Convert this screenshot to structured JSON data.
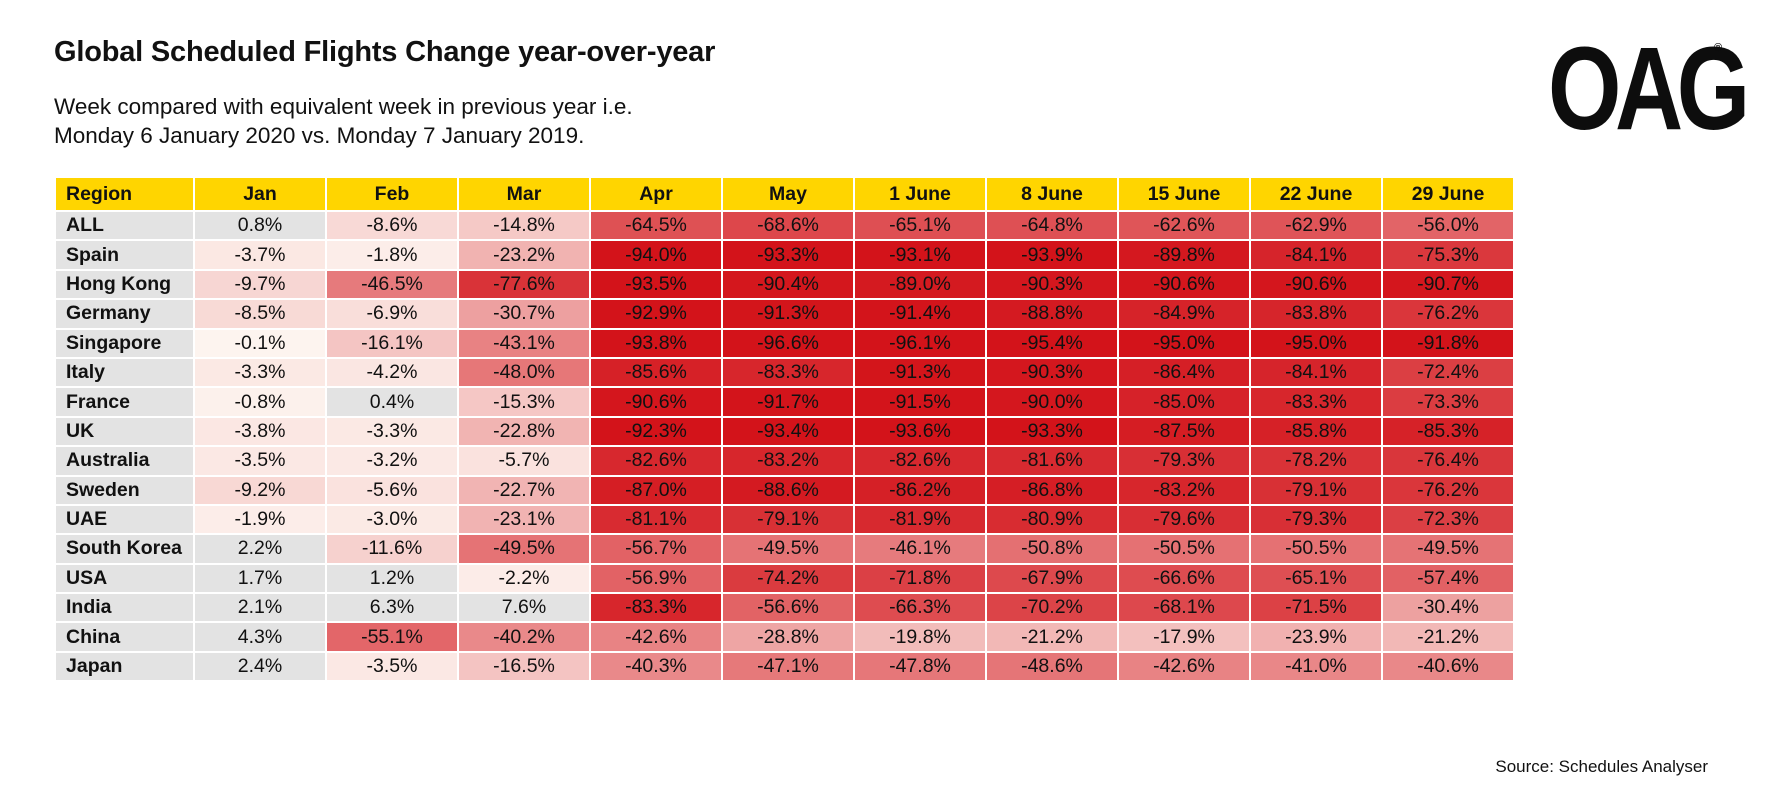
{
  "header": {
    "title": "Global Scheduled Flights Change year-over-year",
    "subtitle_line1": "Week compared with equivalent week in previous year i.e.",
    "subtitle_line2": "Monday 6 January 2020 vs. Monday 7 January 2019.",
    "logo_text": "OAG",
    "logo_mark": "®"
  },
  "footer": {
    "source": "Source: Schedules Analyser"
  },
  "colors": {
    "header_bg": "#ffd500",
    "region_bg": "#e3e3e3",
    "min_change": "#d3131a",
    "max_change": "#fdf4ef",
    "neutral": "#e3e3e3"
  },
  "chart_data": {
    "type": "heatmap",
    "title": "Global Scheduled Flights Change year-over-year",
    "row_header": "Region",
    "columns": [
      "Jan",
      "Feb",
      "Mar",
      "Apr",
      "May",
      "1 June",
      "8 June",
      "15 June",
      "22 June",
      "29 June"
    ],
    "rows": [
      {
        "region": "ALL",
        "values": [
          "0.8%",
          "-8.6%",
          "-14.8%",
          "-64.5%",
          "-68.6%",
          "-65.1%",
          "-64.8%",
          "-62.6%",
          "-62.9%",
          "-56.0%"
        ]
      },
      {
        "region": "Spain",
        "values": [
          "-3.7%",
          "-1.8%",
          "-23.2%",
          "-94.0%",
          "-93.3%",
          "-93.1%",
          "-93.9%",
          "-89.8%",
          "-84.1%",
          "-75.3%"
        ]
      },
      {
        "region": "Hong Kong",
        "values": [
          "-9.7%",
          "-46.5%",
          "-77.6%",
          "-93.5%",
          "-90.4%",
          "-89.0%",
          "-90.3%",
          "-90.6%",
          "-90.6%",
          "-90.7%"
        ]
      },
      {
        "region": "Germany",
        "values": [
          "-8.5%",
          "-6.9%",
          "-30.7%",
          "-92.9%",
          "-91.3%",
          "-91.4%",
          "-88.8%",
          "-84.9%",
          "-83.8%",
          "-76.2%"
        ]
      },
      {
        "region": "Singapore",
        "values": [
          "-0.1%",
          "-16.1%",
          "-43.1%",
          "-93.8%",
          "-96.6%",
          "-96.1%",
          "-95.4%",
          "-95.0%",
          "-95.0%",
          "-91.8%"
        ]
      },
      {
        "region": "Italy",
        "values": [
          "-3.3%",
          "-4.2%",
          "-48.0%",
          "-85.6%",
          "-83.3%",
          "-91.3%",
          "-90.3%",
          "-86.4%",
          "-84.1%",
          "-72.4%"
        ]
      },
      {
        "region": "France",
        "values": [
          "-0.8%",
          "0.4%",
          "-15.3%",
          "-90.6%",
          "-91.7%",
          "-91.5%",
          "-90.0%",
          "-85.0%",
          "-83.3%",
          "-73.3%"
        ]
      },
      {
        "region": "UK",
        "values": [
          "-3.8%",
          "-3.3%",
          "-22.8%",
          "-92.3%",
          "-93.4%",
          "-93.6%",
          "-93.3%",
          "-87.5%",
          "-85.8%",
          "-85.3%"
        ]
      },
      {
        "region": "Australia",
        "values": [
          "-3.5%",
          "-3.2%",
          "-5.7%",
          "-82.6%",
          "-83.2%",
          "-82.6%",
          "-81.6%",
          "-79.3%",
          "-78.2%",
          "-76.4%"
        ]
      },
      {
        "region": "Sweden",
        "values": [
          "-9.2%",
          "-5.6%",
          "-22.7%",
          "-87.0%",
          "-88.6%",
          "-86.2%",
          "-86.8%",
          "-83.2%",
          "-79.1%",
          "-76.2%"
        ]
      },
      {
        "region": "UAE",
        "values": [
          "-1.9%",
          "-3.0%",
          "-23.1%",
          "-81.1%",
          "-79.1%",
          "-81.9%",
          "-80.9%",
          "-79.6%",
          "-79.3%",
          "-72.3%"
        ]
      },
      {
        "region": "South Korea",
        "values": [
          "2.2%",
          "-11.6%",
          "-49.5%",
          "-56.7%",
          "-49.5%",
          "-46.1%",
          "-50.8%",
          "-50.5%",
          "-50.5%",
          "-49.5%"
        ]
      },
      {
        "region": "USA",
        "values": [
          "1.7%",
          "1.2%",
          "-2.2%",
          "-56.9%",
          "-74.2%",
          "-71.8%",
          "-67.9%",
          "-66.6%",
          "-65.1%",
          "-57.4%"
        ]
      },
      {
        "region": "India",
        "values": [
          "2.1%",
          "6.3%",
          "7.6%",
          "-83.3%",
          "-56.6%",
          "-66.3%",
          "-70.2%",
          "-68.1%",
          "-71.5%",
          "-30.4%"
        ]
      },
      {
        "region": "China",
        "values": [
          "4.3%",
          "-55.1%",
          "-40.2%",
          "-42.6%",
          "-28.8%",
          "-19.8%",
          "-21.2%",
          "-17.9%",
          "-23.9%",
          "-21.2%"
        ]
      },
      {
        "region": "Japan",
        "values": [
          "2.4%",
          "-3.5%",
          "-16.5%",
          "-40.3%",
          "-47.1%",
          "-47.8%",
          "-48.6%",
          "-42.6%",
          "-41.0%",
          "-40.6%"
        ]
      }
    ]
  }
}
